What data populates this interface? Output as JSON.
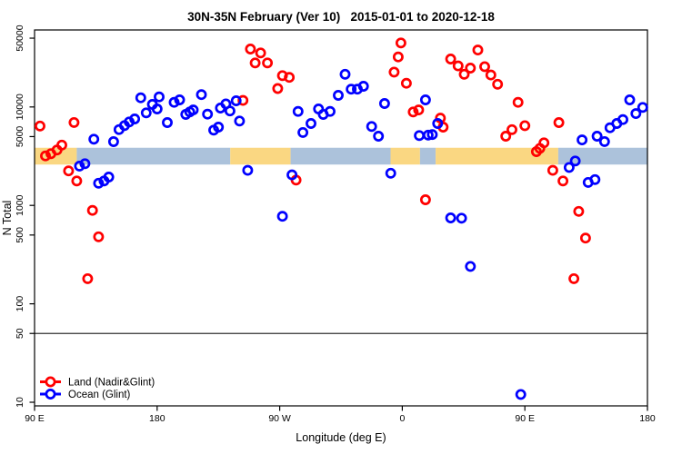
{
  "chart_data": {
    "type": "scatter",
    "title": "30N-35N February (Ver 10)   2015-01-01 to 2020-12-18",
    "xlabel": "Longitude (deg E)",
    "ylabel": "N Total",
    "x_axis": {
      "range": [
        90,
        540
      ],
      "ticks": [
        90,
        180,
        270,
        360,
        450,
        540
      ],
      "tick_labels": [
        "90 E",
        "180",
        "90 W",
        "0",
        "90 E",
        "180"
      ],
      "note": "longitude wraps eastward starting at 90E"
    },
    "y_axis": {
      "scale": "log10",
      "range": [
        10,
        50000
      ],
      "ticks": [
        10,
        50,
        100,
        500,
        1000,
        5000,
        10000,
        50000
      ],
      "tick_labels": [
        "10",
        "50",
        "100",
        "500",
        "1000",
        "5000",
        "10000",
        "50000"
      ]
    },
    "reference_line": {
      "y": 50,
      "color": "#333333"
    },
    "surface_band": {
      "n_low": 2600,
      "n_high": 3850,
      "land_color": "#FAD782",
      "ocean_color": "#ACC2DB",
      "segments": [
        {
          "from": 90,
          "to": 121,
          "type": "land"
        },
        {
          "from": 121,
          "to": 233.7,
          "type": "ocean"
        },
        {
          "from": 233.7,
          "to": 278,
          "type": "land"
        },
        {
          "from": 278,
          "to": 351.4,
          "type": "ocean"
        },
        {
          "from": 351.4,
          "to": 373,
          "type": "land"
        },
        {
          "from": 373,
          "to": 384.5,
          "type": "ocean"
        },
        {
          "from": 384.5,
          "to": 474.5,
          "type": "land"
        },
        {
          "from": 474.5,
          "to": 540,
          "type": "ocean"
        }
      ]
    },
    "legend": {
      "position": "bottom-left"
    },
    "series": [
      {
        "name": "Land (Nadir&Glint)",
        "color": "#FF0000",
        "points": [
          [
            94,
            6400
          ],
          [
            119,
            6950
          ],
          [
            98,
            3180
          ],
          [
            102,
            3350
          ],
          [
            106.5,
            3650
          ],
          [
            110,
            4100
          ],
          [
            115,
            2240
          ],
          [
            121,
            1770
          ],
          [
            132.5,
            890
          ],
          [
            137,
            480
          ],
          [
            129,
            180
          ],
          [
            243,
            11650
          ],
          [
            248.5,
            38800
          ],
          [
            252,
            28000
          ],
          [
            256,
            35400
          ],
          [
            261,
            28000
          ],
          [
            268.5,
            15400
          ],
          [
            272,
            20800
          ],
          [
            277,
            20000
          ],
          [
            282,
            1810
          ],
          [
            354,
            22600
          ],
          [
            357,
            32200
          ],
          [
            359,
            44700
          ],
          [
            363,
            17400
          ],
          [
            368,
            8900
          ],
          [
            372,
            9330
          ],
          [
            377,
            1140
          ],
          [
            388,
            7700
          ],
          [
            390,
            6240
          ],
          [
            395.5,
            30700
          ],
          [
            401,
            26100
          ],
          [
            405.5,
            21500
          ],
          [
            410,
            24800
          ],
          [
            415.5,
            37900
          ],
          [
            420.5,
            25700
          ],
          [
            425,
            21100
          ],
          [
            430,
            17000
          ],
          [
            436,
            5050
          ],
          [
            440.5,
            5880
          ],
          [
            445,
            11150
          ],
          [
            450,
            6460
          ],
          [
            458.5,
            3520
          ],
          [
            461,
            3800
          ],
          [
            464,
            4320
          ],
          [
            470.5,
            2270
          ],
          [
            475,
            6940
          ],
          [
            478,
            1770
          ],
          [
            486,
            180
          ],
          [
            489.5,
            870
          ],
          [
            494.5,
            465
          ]
        ]
      },
      {
        "name": "Ocean (Glint)",
        "color": "#0000FF",
        "points": [
          [
            123,
            2510
          ],
          [
            127,
            2650
          ],
          [
            133.5,
            4700
          ],
          [
            137,
            1680
          ],
          [
            141,
            1770
          ],
          [
            144.5,
            1940
          ],
          [
            148,
            4440
          ],
          [
            152,
            5890
          ],
          [
            156,
            6470
          ],
          [
            159.5,
            7050
          ],
          [
            163.5,
            7550
          ],
          [
            168,
            12400
          ],
          [
            172,
            8710
          ],
          [
            176.5,
            10620
          ],
          [
            180,
            9550
          ],
          [
            181.5,
            12670
          ],
          [
            187.5,
            6940
          ],
          [
            192.5,
            11150
          ],
          [
            196.5,
            11800
          ],
          [
            201,
            8400
          ],
          [
            204,
            8900
          ],
          [
            206.5,
            9330
          ],
          [
            212.5,
            13340
          ],
          [
            217,
            8450
          ],
          [
            221.5,
            5820
          ],
          [
            225,
            6240
          ],
          [
            226.5,
            9750
          ],
          [
            230.5,
            10760
          ],
          [
            233.5,
            9100
          ],
          [
            238,
            11560
          ],
          [
            240.5,
            7190
          ],
          [
            246.5,
            2270
          ],
          [
            272,
            775
          ],
          [
            279,
            2040
          ],
          [
            283.5,
            9020
          ],
          [
            287,
            5500
          ],
          [
            293,
            6800
          ],
          [
            298.5,
            9550
          ],
          [
            302,
            8400
          ],
          [
            307,
            9020
          ],
          [
            313,
            13120
          ],
          [
            318,
            21500
          ],
          [
            322.5,
            15150
          ],
          [
            327,
            15150
          ],
          [
            331.5,
            16230
          ],
          [
            337.5,
            6330
          ],
          [
            342.5,
            5050
          ],
          [
            347,
            10840
          ],
          [
            351.5,
            2120
          ],
          [
            372.5,
            5120
          ],
          [
            377,
            11800
          ],
          [
            379,
            5180
          ],
          [
            382,
            5240
          ],
          [
            386,
            6800
          ],
          [
            395.5,
            746
          ],
          [
            403.5,
            741
          ],
          [
            410,
            240
          ],
          [
            447,
            12
          ],
          [
            482.5,
            2430
          ],
          [
            487,
            2825
          ],
          [
            492,
            4630
          ],
          [
            496.5,
            1710
          ],
          [
            501.5,
            1830
          ],
          [
            503,
            5050
          ],
          [
            508.5,
            4450
          ],
          [
            512.5,
            6150
          ],
          [
            517.5,
            6800
          ],
          [
            522,
            7450
          ],
          [
            527,
            11800
          ],
          [
            531.5,
            8570
          ],
          [
            536.5,
            9890
          ]
        ]
      }
    ]
  }
}
